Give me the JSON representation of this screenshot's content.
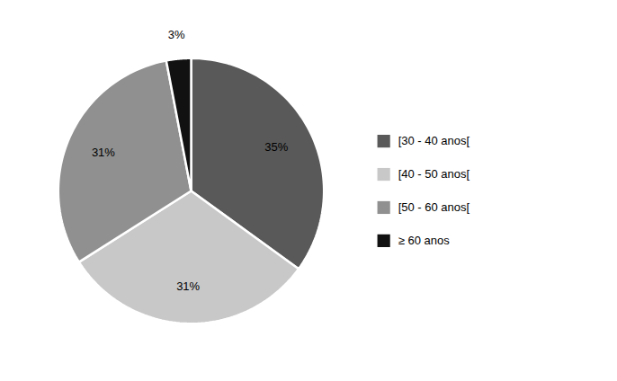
{
  "chart_data": {
    "type": "pie",
    "categories": [
      "[30 - 40 anos[",
      "[40 - 50 anos[",
      "[50 - 60 anos[",
      "≥ 60 anos"
    ],
    "values": [
      35,
      31,
      31,
      3
    ],
    "value_labels": [
      "35%",
      "31%",
      "31%",
      "3%"
    ],
    "colors": [
      "#595959",
      "#c8c8c8",
      "#909090",
      "#111111"
    ],
    "data_labels": true,
    "legend": "right"
  }
}
